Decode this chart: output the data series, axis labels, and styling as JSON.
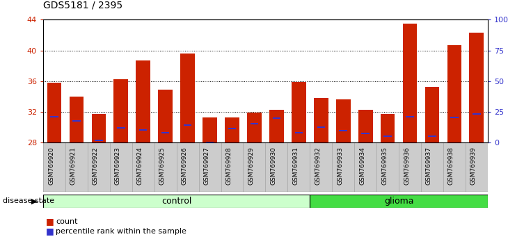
{
  "title": "GDS5181 / 2395",
  "samples": [
    "GSM769920",
    "GSM769921",
    "GSM769922",
    "GSM769923",
    "GSM769924",
    "GSM769925",
    "GSM769926",
    "GSM769927",
    "GSM769928",
    "GSM769929",
    "GSM769930",
    "GSM769931",
    "GSM769932",
    "GSM769933",
    "GSM769934",
    "GSM769935",
    "GSM769936",
    "GSM769937",
    "GSM769938",
    "GSM769939"
  ],
  "red_values": [
    35.8,
    34.0,
    31.7,
    36.3,
    38.7,
    34.9,
    39.6,
    31.3,
    31.3,
    31.9,
    32.3,
    35.9,
    33.8,
    33.6,
    32.3,
    31.7,
    43.5,
    35.3,
    40.7,
    42.3
  ],
  "blue_values": [
    31.4,
    30.8,
    28.3,
    29.9,
    29.7,
    29.3,
    30.3,
    28.0,
    29.8,
    30.5,
    31.2,
    29.3,
    30.0,
    29.6,
    29.2,
    28.8,
    31.4,
    28.8,
    31.3,
    31.7
  ],
  "ylim": [
    28,
    44
  ],
  "yticks": [
    28,
    32,
    36,
    40,
    44
  ],
  "grid_values": [
    32,
    36,
    40
  ],
  "right_yticks": [
    0,
    25,
    50,
    75,
    100
  ],
  "right_yticklabels": [
    "0",
    "25",
    "50",
    "75",
    "100%"
  ],
  "control_count": 12,
  "glioma_count": 8,
  "bar_color": "#cc2200",
  "blue_color": "#3333cc",
  "control_bg": "#ccffcc",
  "glioma_bg": "#44dd44",
  "tick_label_bg": "#cccccc",
  "bar_width": 0.65,
  "legend_items": [
    {
      "color": "#cc2200",
      "label": "count"
    },
    {
      "color": "#3333cc",
      "label": "percentile rank within the sample"
    }
  ],
  "disease_state_label": "disease state",
  "control_label": "control",
  "glioma_label": "glioma"
}
